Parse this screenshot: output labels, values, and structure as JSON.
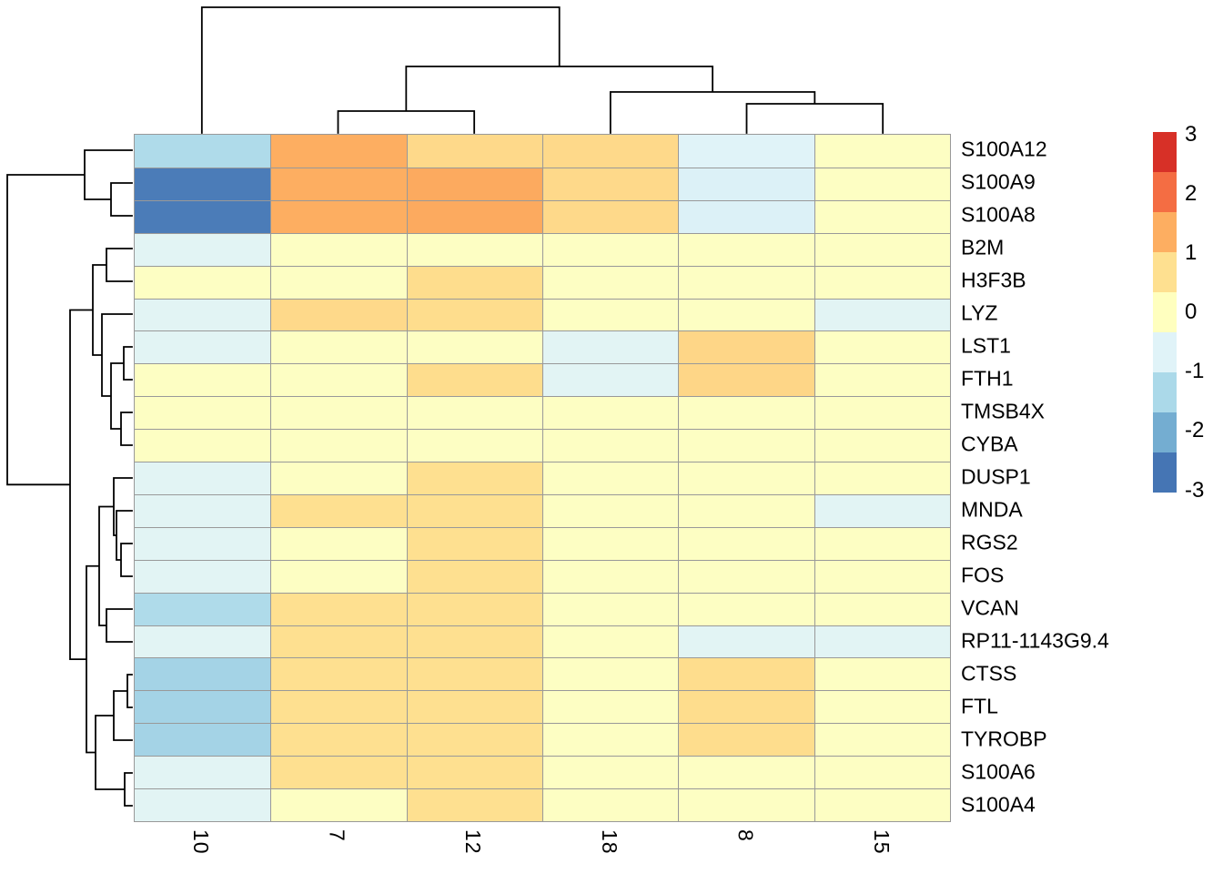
{
  "chart_data": {
    "type": "heatmap",
    "title": "",
    "columns": [
      "10",
      "7",
      "12",
      "18",
      "8",
      "15"
    ],
    "rows": [
      "S100A12",
      "S100A9",
      "S100A8",
      "B2M",
      "H3F3B",
      "LYZ",
      "LST1",
      "FTH1",
      "TMSB4X",
      "CYBA",
      "DUSP1",
      "MNDA",
      "RGS2",
      "FOS",
      "VCAN",
      "RP11-1143G9.4",
      "CTSS",
      "FTL",
      "TYROBP",
      "S100A6",
      "S100A4"
    ],
    "values": [
      [
        -1.45,
        1.5,
        0.85,
        0.85,
        -0.75,
        -0.05
      ],
      [
        -2.9,
        1.5,
        1.55,
        0.85,
        -0.8,
        -0.05
      ],
      [
        -2.9,
        1.5,
        1.55,
        0.85,
        -0.8,
        -0.05
      ],
      [
        -0.7,
        -0.05,
        -0.05,
        -0.05,
        -0.05,
        -0.05
      ],
      [
        -0.05,
        -0.05,
        0.8,
        -0.05,
        -0.05,
        -0.05
      ],
      [
        -0.7,
        0.85,
        0.8,
        -0.05,
        -0.05,
        -0.7
      ],
      [
        -0.7,
        -0.05,
        -0.05,
        -0.7,
        0.9,
        -0.05
      ],
      [
        -0.05,
        -0.05,
        0.8,
        -0.7,
        0.9,
        -0.05
      ],
      [
        -0.05,
        -0.05,
        -0.05,
        -0.05,
        -0.05,
        -0.05
      ],
      [
        -0.05,
        -0.05,
        -0.05,
        -0.05,
        -0.05,
        -0.05
      ],
      [
        -0.7,
        -0.05,
        0.75,
        -0.05,
        -0.05,
        -0.05
      ],
      [
        -0.7,
        0.75,
        0.75,
        -0.05,
        -0.05,
        -0.7
      ],
      [
        -0.7,
        -0.05,
        0.75,
        -0.05,
        -0.05,
        -0.05
      ],
      [
        -0.7,
        -0.05,
        0.75,
        -0.05,
        -0.05,
        -0.05
      ],
      [
        -1.45,
        0.75,
        0.75,
        -0.05,
        -0.05,
        -0.05
      ],
      [
        -0.7,
        0.75,
        0.75,
        -0.05,
        -0.7,
        -0.7
      ],
      [
        -1.6,
        0.75,
        0.75,
        -0.05,
        0.8,
        -0.05
      ],
      [
        -1.6,
        0.75,
        0.75,
        -0.05,
        0.8,
        -0.05
      ],
      [
        -1.6,
        0.75,
        0.75,
        -0.05,
        0.8,
        -0.05
      ],
      [
        -0.7,
        0.75,
        0.75,
        -0.05,
        -0.05,
        -0.05
      ],
      [
        -0.7,
        -0.05,
        0.75,
        -0.05,
        -0.05,
        -0.05
      ]
    ],
    "color_scale": {
      "min": -3,
      "max": 3,
      "palette": "RdYlBu reversed",
      "stops": [
        "#4575B4",
        "#74ADD1",
        "#ABD9E9",
        "#E0F3F8",
        "#FFFFBF",
        "#FEE090",
        "#FDAE61",
        "#F46D43",
        "#D73027"
      ]
    },
    "legend": {
      "ticks": [
        "3",
        "2",
        "1",
        "0",
        "-1",
        "-2",
        "-3"
      ],
      "segment_colors_top_to_bottom": [
        "#D73027",
        "#F46D43",
        "#FDAE61",
        "#FEE090",
        "#FFFFBF",
        "#E0F3F8",
        "#ABD9E9",
        "#74ADD1",
        "#4575B4"
      ]
    },
    "row_dendrogram": {
      "merges": [
        {
          "id": "A",
          "children": [
            "L1",
            "L2"
          ],
          "pos": 122
        },
        {
          "id": "B",
          "children": [
            "L0",
            "A"
          ],
          "pos": 93
        },
        {
          "id": "C",
          "children": [
            "L3",
            "L4"
          ],
          "pos": 117
        },
        {
          "id": "D",
          "children": [
            "L6",
            "L7"
          ],
          "pos": 136
        },
        {
          "id": "E",
          "children": [
            "L8",
            "L9"
          ],
          "pos": 133
        },
        {
          "id": "F",
          "children": [
            "D",
            "E"
          ],
          "pos": 122
        },
        {
          "id": "G",
          "children": [
            "L5",
            "F"
          ],
          "pos": 112
        },
        {
          "id": "H",
          "children": [
            "C",
            "G"
          ],
          "pos": 102
        },
        {
          "id": "I",
          "children": [
            "L12",
            "L13"
          ],
          "pos": 133
        },
        {
          "id": "J",
          "children": [
            "L11",
            "I"
          ],
          "pos": 128
        },
        {
          "id": "K",
          "children": [
            "L10",
            "J"
          ],
          "pos": 125
        },
        {
          "id": "L",
          "children": [
            "L14",
            "L15"
          ],
          "pos": 117
        },
        {
          "id": "M",
          "children": [
            "K",
            "L"
          ],
          "pos": 109
        },
        {
          "id": "N",
          "children": [
            "L16",
            "L17"
          ],
          "pos": 140
        },
        {
          "id": "O",
          "children": [
            "N",
            "L18"
          ],
          "pos": 125
        },
        {
          "id": "P",
          "children": [
            "L19",
            "L20"
          ],
          "pos": 137
        },
        {
          "id": "Q",
          "children": [
            "O",
            "P"
          ],
          "pos": 105
        },
        {
          "id": "R",
          "children": [
            "M",
            "Q"
          ],
          "pos": 95
        },
        {
          "id": "S",
          "children": [
            "H",
            "R"
          ],
          "pos": 77
        },
        {
          "id": "ROOT",
          "children": [
            "B",
            "S"
          ],
          "pos": 8
        }
      ]
    },
    "col_dendrogram": {
      "merges": [
        {
          "id": "E2",
          "children": [
            "L1",
            "L2"
          ],
          "pos": 122
        },
        {
          "id": "D2",
          "children": [
            "L4",
            "L5"
          ],
          "pos": 114
        },
        {
          "id": "C2",
          "children": [
            "L3",
            "D2"
          ],
          "pos": 101
        },
        {
          "id": "B2",
          "children": [
            "E2",
            "C2"
          ],
          "pos": 73
        },
        {
          "id": "ROOT",
          "children": [
            "L0",
            "B2"
          ],
          "pos": 8
        }
      ]
    },
    "colors": {
      "grid": "#999999",
      "dendrogram_line": "#000000",
      "text": "#000000",
      "background": "#ffffff"
    }
  }
}
